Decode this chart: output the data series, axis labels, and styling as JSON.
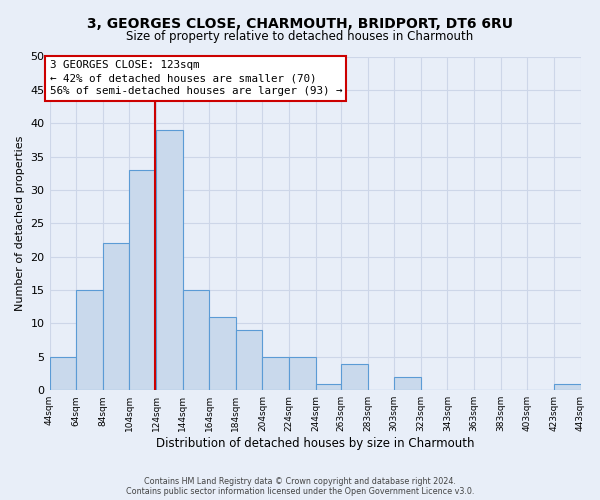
{
  "title": "3, GEORGES CLOSE, CHARMOUTH, BRIDPORT, DT6 6RU",
  "subtitle": "Size of property relative to detached houses in Charmouth",
  "xlabel": "Distribution of detached houses by size in Charmouth",
  "ylabel": "Number of detached properties",
  "bin_edges": [
    44,
    64,
    84,
    104,
    124,
    144,
    164,
    184,
    204,
    224,
    244,
    263,
    283,
    303,
    323,
    343,
    363,
    383,
    403,
    423,
    443
  ],
  "counts": [
    5,
    15,
    22,
    33,
    39,
    15,
    11,
    9,
    5,
    5,
    1,
    4,
    0,
    2,
    0,
    0,
    0,
    0,
    0,
    1
  ],
  "bar_color": "#c9d9ec",
  "bar_edge_color": "#5b9bd5",
  "vline_x": 123,
  "vline_color": "#cc0000",
  "annotation_text": "3 GEORGES CLOSE: 123sqm\n← 42% of detached houses are smaller (70)\n56% of semi-detached houses are larger (93) →",
  "annotation_box_facecolor": "#ffffff",
  "annotation_box_edgecolor": "#cc0000",
  "ylim": [
    0,
    50
  ],
  "yticks": [
    0,
    5,
    10,
    15,
    20,
    25,
    30,
    35,
    40,
    45,
    50
  ],
  "grid_color": "#cdd6e8",
  "background_color": "#e8eef8",
  "footer_line1": "Contains HM Land Registry data © Crown copyright and database right 2024.",
  "footer_line2": "Contains public sector information licensed under the Open Government Licence v3.0.",
  "tick_labels": [
    "44sqm",
    "64sqm",
    "84sqm",
    "104sqm",
    "124sqm",
    "144sqm",
    "164sqm",
    "184sqm",
    "204sqm",
    "224sqm",
    "244sqm",
    "263sqm",
    "283sqm",
    "303sqm",
    "323sqm",
    "343sqm",
    "363sqm",
    "383sqm",
    "403sqm",
    "423sqm",
    "443sqm"
  ]
}
